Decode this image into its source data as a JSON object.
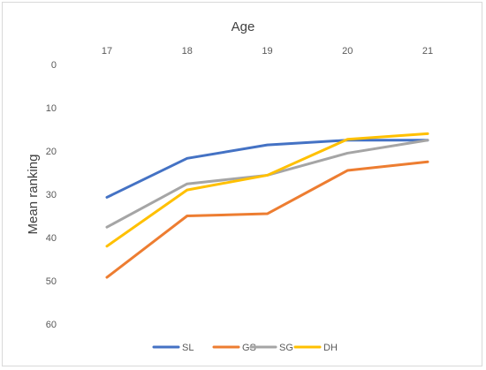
{
  "chart_data": {
    "type": "line",
    "title": "",
    "xlabel": "Age",
    "ylabel": "Mean ranking",
    "x_axis_position": "top",
    "y_axis_reversed": true,
    "categories": [
      "17",
      "18",
      "19",
      "20",
      "21"
    ],
    "y_ticks": [
      0,
      10,
      20,
      30,
      40,
      50,
      60
    ],
    "ylim": [
      0,
      60
    ],
    "grid": false,
    "legend": "bottom",
    "series": [
      {
        "name": "SL",
        "color": "#4472C4",
        "values": [
          30.7,
          21.7,
          18.6,
          17.5,
          17.5
        ]
      },
      {
        "name": "GS",
        "color": "#ED7D31",
        "values": [
          49.2,
          35.0,
          34.5,
          24.5,
          22.5
        ]
      },
      {
        "name": "SG",
        "color": "#A5A5A5",
        "values": [
          37.6,
          27.6,
          25.6,
          20.5,
          17.5
        ]
      },
      {
        "name": "DH",
        "color": "#FFC000",
        "values": [
          42.0,
          29.0,
          25.6,
          17.3,
          16.0
        ]
      }
    ]
  }
}
